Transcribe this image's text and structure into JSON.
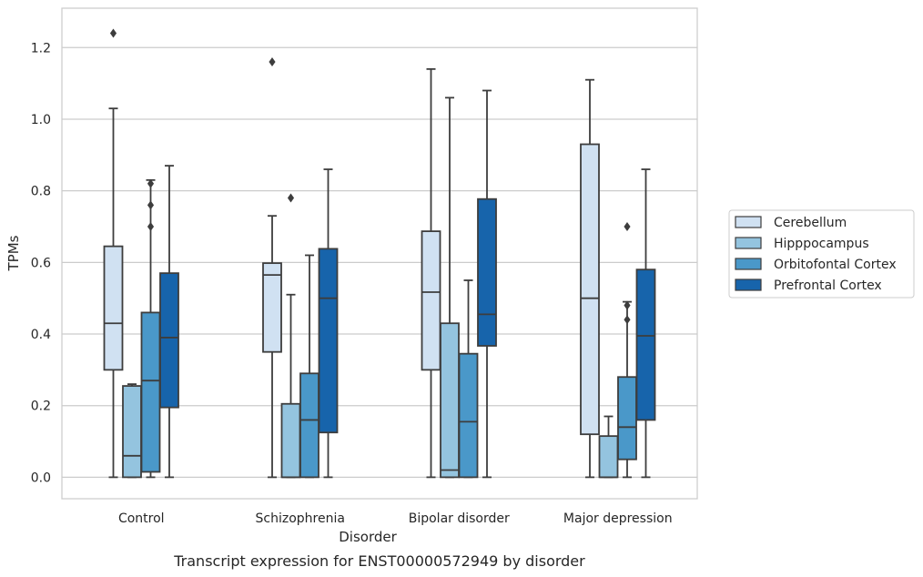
{
  "chart_data": {
    "type": "box",
    "caption": "Transcript expression for ENST00000572949 by disorder",
    "xlabel": "Disorder",
    "ylabel": "TPMs",
    "ylim": [
      -0.06,
      1.31
    ],
    "yticks": [
      0.0,
      0.2,
      0.4,
      0.6,
      0.8,
      1.0,
      1.2
    ],
    "ytick_labels": [
      "0.0",
      "0.2",
      "0.4",
      "0.6",
      "0.8",
      "1.0",
      "1.2"
    ],
    "grid": "horizontal",
    "legend_position": "right",
    "categories": [
      "Control",
      "Schizophrenia",
      "Bipolar disorder",
      "Major depression"
    ],
    "series": [
      {
        "name": "Cerebellum",
        "color": "#d0e1f2",
        "boxes": [
          {
            "whislo": 0.0,
            "q1": 0.3,
            "med": 0.43,
            "q3": 0.645,
            "whishi": 1.03,
            "fliers": [
              1.24
            ]
          },
          {
            "whislo": 0.0,
            "q1": 0.35,
            "med": 0.565,
            "q3": 0.598,
            "whishi": 0.73,
            "fliers": [
              1.16
            ]
          },
          {
            "whislo": 0.0,
            "q1": 0.3,
            "med": 0.517,
            "q3": 0.687,
            "whishi": 1.14,
            "fliers": []
          },
          {
            "whislo": 0.0,
            "q1": 0.12,
            "med": 0.5,
            "q3": 0.93,
            "whishi": 1.11,
            "fliers": []
          }
        ]
      },
      {
        "name": "Hipppocampus",
        "color": "#94c4df",
        "boxes": [
          {
            "whislo": 0.0,
            "q1": 0.0,
            "med": 0.06,
            "q3": 0.255,
            "whishi": 0.26,
            "fliers": []
          },
          {
            "whislo": 0.0,
            "q1": 0.0,
            "med": 0.0,
            "q3": 0.205,
            "whishi": 0.51,
            "fliers": [
              0.78
            ]
          },
          {
            "whislo": 0.0,
            "q1": 0.0,
            "med": 0.02,
            "q3": 0.43,
            "whishi": 1.06,
            "fliers": []
          },
          {
            "whislo": 0.0,
            "q1": 0.0,
            "med": 0.0,
            "q3": 0.115,
            "whishi": 0.17,
            "fliers": []
          }
        ]
      },
      {
        "name": "Orbitofontal Cortex",
        "color": "#4a98c9",
        "boxes": [
          {
            "whislo": 0.0,
            "q1": 0.015,
            "med": 0.27,
            "q3": 0.46,
            "whishi": 0.83,
            "fliers": [
              0.7,
              0.76,
              0.82
            ]
          },
          {
            "whislo": 0.0,
            "q1": 0.0,
            "med": 0.16,
            "q3": 0.29,
            "whishi": 0.62,
            "fliers": []
          },
          {
            "whislo": 0.0,
            "q1": 0.0,
            "med": 0.155,
            "q3": 0.345,
            "whishi": 0.55,
            "fliers": []
          },
          {
            "whislo": 0.0,
            "q1": 0.05,
            "med": 0.14,
            "q3": 0.28,
            "whishi": 0.49,
            "fliers": [
              0.44,
              0.48,
              0.7
            ]
          }
        ]
      },
      {
        "name": "Prefrontal Cortex",
        "color": "#1764ab",
        "boxes": [
          {
            "whislo": 0.0,
            "q1": 0.195,
            "med": 0.39,
            "q3": 0.57,
            "whishi": 0.87,
            "fliers": []
          },
          {
            "whislo": 0.0,
            "q1": 0.125,
            "med": 0.5,
            "q3": 0.638,
            "whishi": 0.86,
            "fliers": []
          },
          {
            "whislo": 0.0,
            "q1": 0.367,
            "med": 0.455,
            "q3": 0.777,
            "whishi": 1.08,
            "fliers": []
          },
          {
            "whislo": 0.0,
            "q1": 0.16,
            "med": 0.395,
            "q3": 0.58,
            "whishi": 0.86,
            "fliers": []
          }
        ]
      }
    ]
  }
}
